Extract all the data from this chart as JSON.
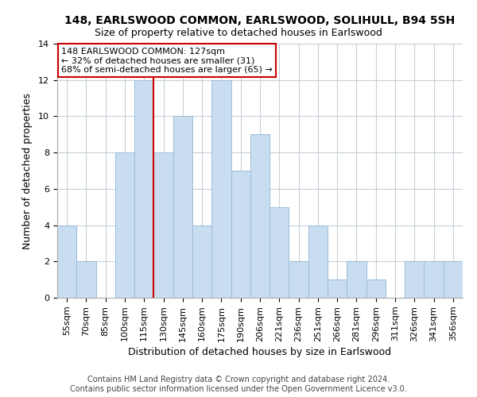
{
  "title": "148, EARLSWOOD COMMON, EARLSWOOD, SOLIHULL, B94 5SH",
  "subtitle": "Size of property relative to detached houses in Earlswood",
  "xlabel": "Distribution of detached houses by size in Earlswood",
  "ylabel": "Number of detached properties",
  "footer_line1": "Contains HM Land Registry data © Crown copyright and database right 2024.",
  "footer_line2": "Contains public sector information licensed under the Open Government Licence v3.0.",
  "annotation_line1": "148 EARLSWOOD COMMON: 127sqm",
  "annotation_line2": "← 32% of detached houses are smaller (31)",
  "annotation_line3": "68% of semi-detached houses are larger (65) →",
  "bar_labels": [
    "55sqm",
    "70sqm",
    "85sqm",
    "100sqm",
    "115sqm",
    "130sqm",
    "145sqm",
    "160sqm",
    "175sqm",
    "190sqm",
    "206sqm",
    "221sqm",
    "236sqm",
    "251sqm",
    "266sqm",
    "281sqm",
    "296sqm",
    "311sqm",
    "326sqm",
    "341sqm",
    "356sqm"
  ],
  "bar_values": [
    4,
    2,
    0,
    8,
    12,
    8,
    10,
    4,
    12,
    7,
    9,
    5,
    2,
    4,
    1,
    2,
    1,
    0,
    2,
    2,
    2
  ],
  "bar_color": "#c9ddf0",
  "bar_edge_color": "#9bbdd9",
  "reference_line_color": "#cc0000",
  "reference_line_x": 4.5,
  "ylim": [
    0,
    14
  ],
  "yticks": [
    0,
    2,
    4,
    6,
    8,
    10,
    12,
    14
  ],
  "annotation_box_color": "#ffffff",
  "annotation_box_edge_color": "#cc0000",
  "grid_color": "#c8d0d8",
  "background_color": "#ffffff",
  "title_fontsize": 10,
  "subtitle_fontsize": 9,
  "ylabel_fontsize": 9,
  "xlabel_fontsize": 9,
  "tick_fontsize": 8,
  "footer_fontsize": 7,
  "annotation_fontsize": 8
}
